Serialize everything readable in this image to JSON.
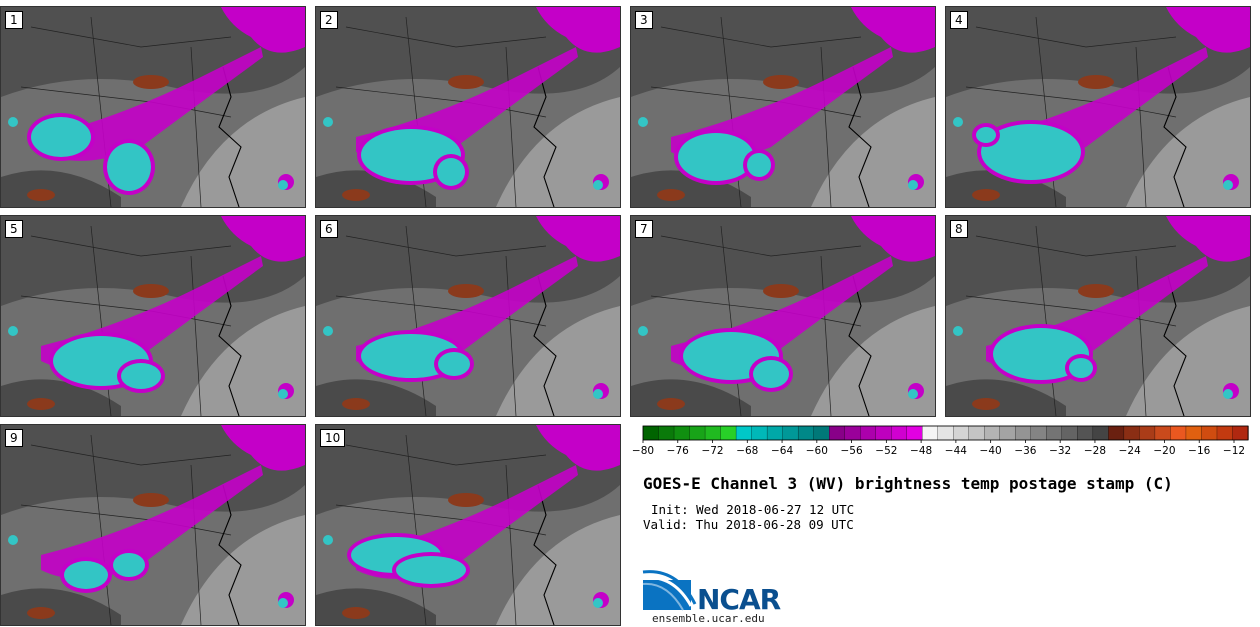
{
  "colors": {
    "cold_cloud": "#33c5c5",
    "cloud_edge": "#c400c8",
    "warm_dry": "#8b3a1c",
    "background_gray": "#6f6f6f"
  },
  "panels": [
    {
      "label": "1"
    },
    {
      "label": "2"
    },
    {
      "label": "3"
    },
    {
      "label": "4"
    },
    {
      "label": "5"
    },
    {
      "label": "6"
    },
    {
      "label": "7"
    },
    {
      "label": "8"
    },
    {
      "label": "9"
    },
    {
      "label": "10"
    }
  ],
  "colorbar": {
    "ticks": [
      "-80",
      "-76",
      "-72",
      "-68",
      "-64",
      "-60",
      "-56",
      "-52",
      "-48",
      "-44",
      "-40",
      "-36",
      "-32",
      "-28",
      "-24",
      "-20",
      "-16",
      "-12"
    ],
    "colors": [
      "#006400",
      "#0a7a0a",
      "#108f10",
      "#18a418",
      "#20ba20",
      "#28d028",
      "#00c8c8",
      "#00b8b8",
      "#00a8a8",
      "#009898",
      "#008888",
      "#007878",
      "#880088",
      "#9a009a",
      "#ac00ac",
      "#be00be",
      "#d000d0",
      "#e200e2",
      "#f4f4f4",
      "#e4e4e4",
      "#d4d4d4",
      "#c4c4c4",
      "#b4b4b4",
      "#a4a4a4",
      "#949494",
      "#848484",
      "#747474",
      "#646464",
      "#545454",
      "#444444",
      "#6a2010",
      "#8a2e14",
      "#aa3c18",
      "#ca4a1c",
      "#ea5820",
      "#e06010",
      "#d04c10",
      "#c23a10",
      "#b02810"
    ]
  },
  "header": {
    "title": "GOES-E Channel 3 (WV) brightness temp postage stamp (C)",
    "init": "Init: Wed 2018-06-27 12 UTC",
    "valid": "Valid: Thu 2018-06-28 09 UTC"
  },
  "logo": {
    "name": "NCAR",
    "url": "ensemble.ucar.edu"
  }
}
